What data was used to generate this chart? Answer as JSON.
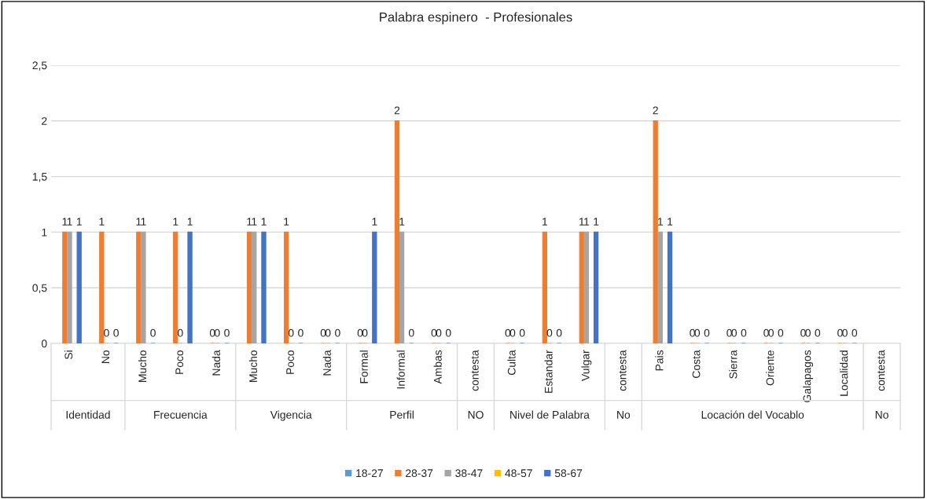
{
  "chart_data": {
    "type": "bar",
    "title": "Palabra espinero  - Profesionales",
    "categories": [
      "Si",
      "No",
      "Mucho",
      "Poco",
      "Nada",
      "Mucho",
      "Poco",
      "Nada",
      "Formal",
      "Informal",
      "Ambas",
      "contesta",
      "Culta",
      "Estandar",
      "Vulgar",
      "contesta",
      "Pais",
      "Costa",
      "Sierra",
      "Oriente",
      "Galapagos",
      "Localidad",
      "contesta"
    ],
    "series": [
      {
        "name": "18-27",
        "color": "#5b9bd5",
        "values": [
          null,
          null,
          null,
          null,
          null,
          null,
          null,
          null,
          null,
          null,
          null,
          null,
          null,
          null,
          null,
          null,
          null,
          null,
          null,
          null,
          null,
          null,
          null
        ]
      },
      {
        "name": "28-37",
        "color": "#ed7d31",
        "values": [
          1,
          1,
          1,
          1,
          0,
          1,
          1,
          0,
          0,
          2,
          0,
          null,
          0,
          1,
          1,
          null,
          2,
          0,
          0,
          0,
          0,
          0,
          null
        ]
      },
      {
        "name": "38-47",
        "color": "#a5a5a5",
        "values": [
          1,
          0,
          1,
          0,
          0,
          1,
          0,
          0,
          0,
          1,
          0,
          null,
          0,
          0,
          1,
          null,
          1,
          0,
          0,
          0,
          0,
          0,
          null
        ]
      },
      {
        "name": "48-57",
        "color": "#ffc000",
        "values": [
          null,
          null,
          null,
          null,
          null,
          null,
          null,
          null,
          null,
          null,
          null,
          null,
          null,
          null,
          null,
          null,
          null,
          null,
          null,
          null,
          null,
          null,
          null
        ]
      },
      {
        "name": "58-67",
        "color": "#4472c4",
        "values": [
          1,
          0,
          0,
          1,
          0,
          1,
          0,
          0,
          1,
          0,
          0,
          null,
          0,
          0,
          1,
          null,
          1,
          0,
          0,
          0,
          0,
          0,
          null
        ]
      }
    ],
    "annotations": [
      "Identidad",
      "Frecuencia",
      "Vigencia",
      "Perfil",
      "NO",
      "Nivel de Palabra",
      "No",
      "Locación del Vocablo",
      "No"
    ],
    "ylim": [
      0,
      2.5
    ],
    "yticks": [
      0,
      {
        "value": 0.5,
        "label": "0,5"
      },
      1,
      {
        "value": 1.5,
        "label": "1,5"
      },
      2,
      {
        "value": 2.5,
        "label": "2,5"
      }
    ],
    "grid": "y",
    "legend": "bottom",
    "data_labels": true
  }
}
